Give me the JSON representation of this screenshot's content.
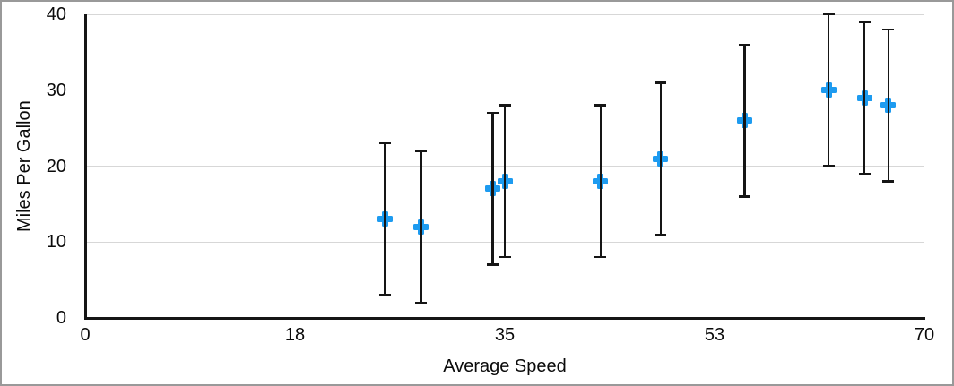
{
  "figure": {
    "background": "#ffffff",
    "border_color": "#999999"
  },
  "chart_data": {
    "type": "scatter",
    "title": "",
    "xlabel": "Average Speed",
    "ylabel": "Miles Per Gallon",
    "xlim": [
      0,
      70
    ],
    "ylim": [
      0,
      40
    ],
    "grid": "horizontal-only",
    "gridline_color": "#d7d7d7",
    "axis_color": "#151515",
    "text_color": "#0a0a0a",
    "x_ticks": [
      {
        "pos": 0,
        "label": "0"
      },
      {
        "pos": 17.5,
        "label": "18"
      },
      {
        "pos": 35,
        "label": "35"
      },
      {
        "pos": 52.5,
        "label": "53"
      },
      {
        "pos": 70,
        "label": "70"
      }
    ],
    "y_ticks": [
      {
        "pos": 0,
        "label": "0"
      },
      {
        "pos": 10,
        "label": "10"
      },
      {
        "pos": 20,
        "label": "20"
      },
      {
        "pos": 30,
        "label": "30"
      },
      {
        "pos": 40,
        "label": "40"
      }
    ],
    "series": [
      {
        "name": "Miles Per Gallon",
        "marker": "plus",
        "marker_color": "#1d9bf0",
        "error_bar_color": "#151515",
        "error_bar_type": "fixed",
        "points": [
          {
            "x": 25,
            "y": 13,
            "err": 10
          },
          {
            "x": 28,
            "y": 12,
            "err": 10
          },
          {
            "x": 34,
            "y": 17,
            "err": 10
          },
          {
            "x": 35,
            "y": 18,
            "err": 10
          },
          {
            "x": 43,
            "y": 18,
            "err": 10
          },
          {
            "x": 48,
            "y": 21,
            "err": 10
          },
          {
            "x": 55,
            "y": 26,
            "err": 10
          },
          {
            "x": 62,
            "y": 30,
            "err": 10
          },
          {
            "x": 65,
            "y": 29,
            "err": 10
          },
          {
            "x": 67,
            "y": 28,
            "err": 10
          }
        ]
      }
    ]
  }
}
